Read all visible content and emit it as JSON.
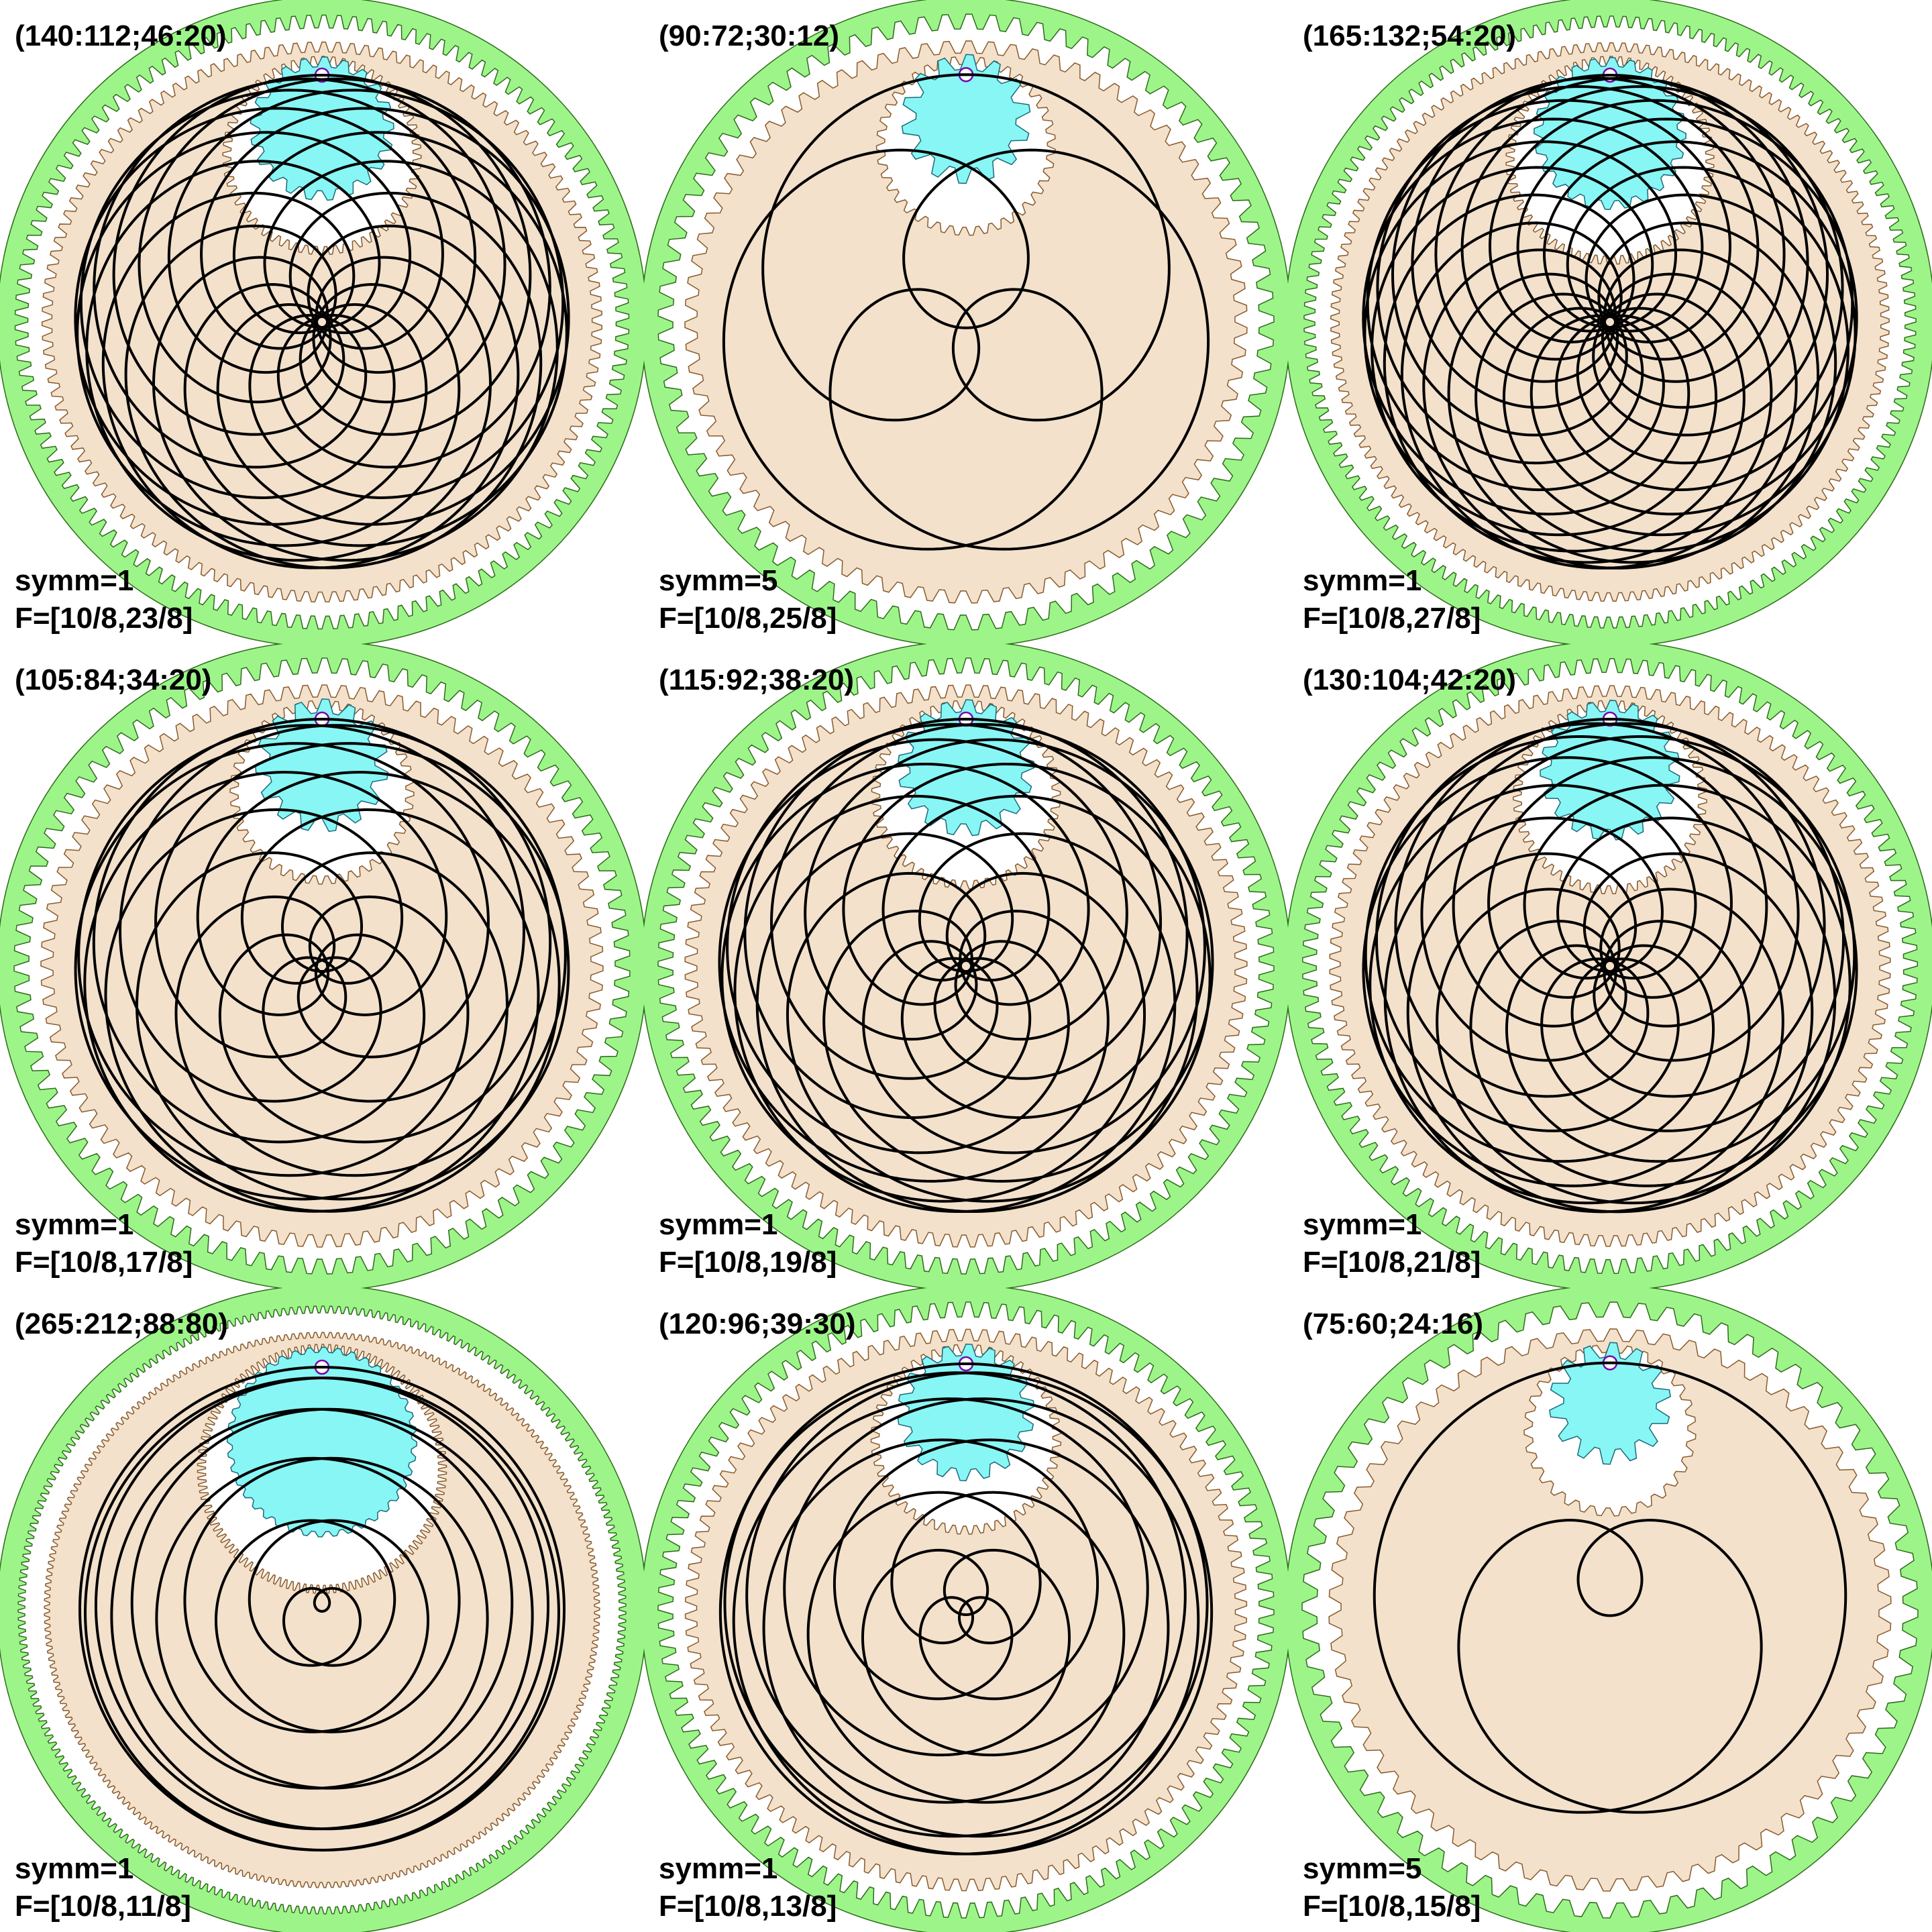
{
  "colors": {
    "ring_gear": "#9df58a",
    "mid_gear": "#f3e1cb",
    "small_gear": "#88f6f5",
    "curve": "#000000",
    "pen": "#7a00b0",
    "background": "#ffffff"
  },
  "panels": [
    {
      "params": "(140:112;46:20)",
      "symm": "symm=1",
      "freq": "F=[10/8,23/8]",
      "ring": 140,
      "mid": 112,
      "small": 46,
      "arm": 20,
      "k": 23
    },
    {
      "params": "(90:72;30:12)",
      "symm": "symm=5",
      "freq": "F=[10/8,25/8]",
      "ring": 90,
      "mid": 72,
      "small": 30,
      "arm": 12,
      "k": 25
    },
    {
      "params": "(165:132;54:20)",
      "symm": "symm=1",
      "freq": "F=[10/8,27/8]",
      "ring": 165,
      "mid": 132,
      "small": 54,
      "arm": 20,
      "k": 27
    },
    {
      "params": "(105:84;34:20)",
      "symm": "symm=1",
      "freq": "F=[10/8,17/8]",
      "ring": 105,
      "mid": 84,
      "small": 34,
      "arm": 20,
      "k": 17
    },
    {
      "params": "(115:92;38:20)",
      "symm": "symm=1",
      "freq": "F=[10/8,19/8]",
      "ring": 115,
      "mid": 92,
      "small": 38,
      "arm": 20,
      "k": 19
    },
    {
      "params": "(130:104;42:20)",
      "symm": "symm=1",
      "freq": "F=[10/8,21/8]",
      "ring": 130,
      "mid": 104,
      "small": 42,
      "arm": 20,
      "k": 21
    },
    {
      "params": "(265:212;88:80)",
      "symm": "symm=1",
      "freq": "F=[10/8,11/8]",
      "ring": 265,
      "mid": 212,
      "small": 88,
      "arm": 80,
      "k": 11
    },
    {
      "params": "(120:96;39:30)",
      "symm": "symm=1",
      "freq": "F=[10/8,13/8]",
      "ring": 120,
      "mid": 96,
      "small": 39,
      "arm": 30,
      "k": 13
    },
    {
      "params": "(75:60;24:16)",
      "symm": "symm=5",
      "freq": "F=[10/8,15/8]",
      "ring": 75,
      "mid": 60,
      "small": 24,
      "arm": 16,
      "k": 15
    }
  ]
}
